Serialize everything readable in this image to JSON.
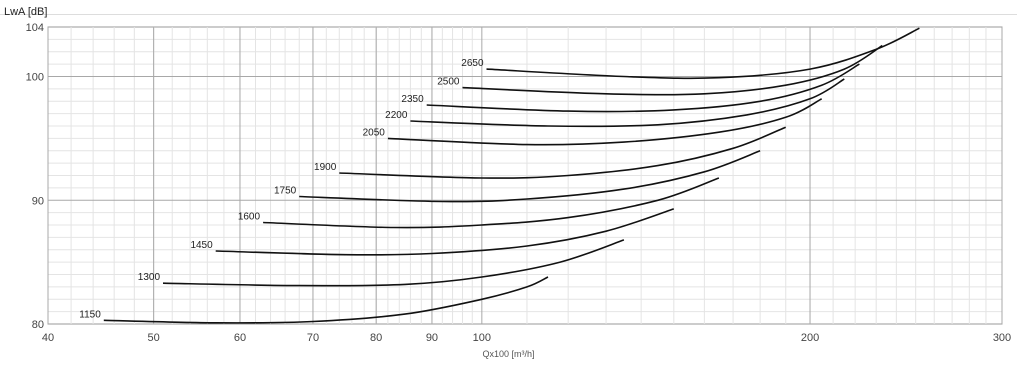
{
  "chart_data": {
    "type": "line",
    "title": "",
    "ylabel": "LwA [dB]",
    "xlabel": "Qx100 [m³/h]",
    "x_scale": "log",
    "xlim": [
      40,
      300
    ],
    "ylim": [
      80,
      104
    ],
    "x_ticks": [
      40,
      50,
      60,
      70,
      80,
      90,
      100,
      200,
      300
    ],
    "y_ticks": [
      80,
      90,
      100,
      104
    ],
    "grid": true,
    "legend": "none",
    "line_color": "#111111",
    "series": [
      {
        "name": "1150",
        "points": [
          [
            45,
            80.3
          ],
          [
            57,
            80.1
          ],
          [
            70,
            80.2
          ],
          [
            85,
            80.8
          ],
          [
            100,
            82.0
          ],
          [
            110,
            83.0
          ],
          [
            115,
            83.8
          ]
        ]
      },
      {
        "name": "1300",
        "points": [
          [
            51,
            83.3
          ],
          [
            68,
            83.1
          ],
          [
            85,
            83.2
          ],
          [
            100,
            83.8
          ],
          [
            118,
            85.0
          ],
          [
            135,
            86.8
          ]
        ]
      },
      {
        "name": "1450",
        "points": [
          [
            57,
            85.9
          ],
          [
            75,
            85.6
          ],
          [
            90,
            85.7
          ],
          [
            110,
            86.3
          ],
          [
            130,
            87.5
          ],
          [
            150,
            89.3
          ]
        ]
      },
      {
        "name": "1600",
        "points": [
          [
            63,
            88.2
          ],
          [
            83,
            87.8
          ],
          [
            100,
            88.0
          ],
          [
            120,
            88.6
          ],
          [
            145,
            90.0
          ],
          [
            165,
            91.8
          ]
        ]
      },
      {
        "name": "1750",
        "points": [
          [
            68,
            90.3
          ],
          [
            92,
            89.9
          ],
          [
            110,
            90.1
          ],
          [
            135,
            90.9
          ],
          [
            160,
            92.3
          ],
          [
            180,
            94.0
          ]
        ]
      },
      {
        "name": "1900",
        "points": [
          [
            74,
            92.2
          ],
          [
            100,
            91.8
          ],
          [
            120,
            92.0
          ],
          [
            145,
            92.8
          ],
          [
            170,
            94.2
          ],
          [
            190,
            95.9
          ]
        ]
      },
      {
        "name": "2050",
        "points": [
          [
            82,
            95.0
          ],
          [
            110,
            94.5
          ],
          [
            135,
            94.7
          ],
          [
            165,
            95.5
          ],
          [
            190,
            96.7
          ],
          [
            205,
            98.2
          ]
        ]
      },
      {
        "name": "2200",
        "points": [
          [
            86,
            96.4
          ],
          [
            115,
            96.0
          ],
          [
            145,
            96.1
          ],
          [
            175,
            96.9
          ],
          [
            200,
            98.2
          ],
          [
            215,
            99.8
          ]
        ]
      },
      {
        "name": "2350",
        "points": [
          [
            89,
            97.7
          ],
          [
            120,
            97.2
          ],
          [
            150,
            97.3
          ],
          [
            180,
            98.0
          ],
          [
            205,
            99.3
          ],
          [
            222,
            101.0
          ]
        ]
      },
      {
        "name": "2500",
        "points": [
          [
            96,
            99.1
          ],
          [
            130,
            98.6
          ],
          [
            160,
            98.6
          ],
          [
            190,
            99.3
          ],
          [
            215,
            100.6
          ],
          [
            233,
            102.5
          ]
        ]
      },
      {
        "name": "2650",
        "points": [
          [
            101,
            100.6
          ],
          [
            135,
            100.0
          ],
          [
            165,
            99.9
          ],
          [
            200,
            100.6
          ],
          [
            230,
            102.2
          ],
          [
            252,
            103.9
          ]
        ]
      }
    ]
  }
}
